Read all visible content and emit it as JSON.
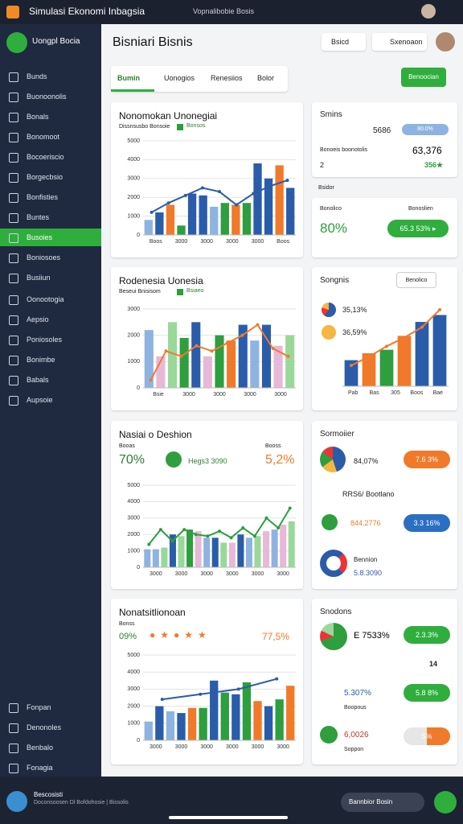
{
  "topbar": {
    "title": "Simulasi Ekonomi Inbagsia",
    "tab": "Vopnalibobie Bosis"
  },
  "sidebar": {
    "brand": "Uongpl Bocia",
    "items": [
      "Bunds",
      "Buonoonolis",
      "Bonals",
      "Bonomoot",
      "Bocoeriscio",
      "Borgecbsio",
      "Bonfisties",
      "Buntes",
      "Busoies",
      "Boniosoes",
      "Busiiun",
      "Oonootogia",
      "Aepsio",
      "Poniosoles",
      "Bonimbe",
      "Babals",
      "Aupsoie"
    ],
    "footer": [
      "Fonpan",
      "Denonoles",
      "Benbalo",
      "Fonagia"
    ]
  },
  "header": {
    "title": "Bisniari Bisnis",
    "select": "Bsicd",
    "search": "Sxenoaon",
    "button": "Benoocian",
    "tabs": [
      "Bumin",
      "Uonogios",
      "Renesiios",
      "Bolor"
    ]
  },
  "charts": [
    {
      "title": "Nonomokan Unonegiai",
      "subtitle": "Dissnsusbo Bonsoie",
      "legend": "Bonsos",
      "ylim": [
        0,
        5000
      ],
      "yticks": [
        0,
        1000,
        2000,
        3000,
        4000,
        5000
      ],
      "categories": [
        "Boos",
        "3000",
        "3000",
        "3000",
        "3000",
        "Boos"
      ],
      "bars": [
        800,
        1200,
        1600,
        500,
        2200,
        2100,
        1500,
        1700,
        1600,
        1700,
        3800,
        3000,
        3700,
        2500
      ],
      "bar_colors": [
        "#8fb3e0",
        "#2a5caa",
        "#f07a2a",
        "#2e9e3e",
        "#2a5caa",
        "#2a5caa",
        "#8fb3e0",
        "#2e9e3e",
        "#f07a2a",
        "#2e9e3e",
        "#2a5caa",
        "#2a5caa",
        "#f07a2a",
        "#2a5caa"
      ],
      "line": [
        1200,
        1700,
        2100,
        2500,
        2300,
        1600,
        2200,
        2600,
        2900
      ],
      "line_color": "#2a5caa"
    },
    {
      "title": "Rodenesia Uonesia",
      "subtitle": "Beseui Bnisisom",
      "legend": "Bsiaeo",
      "ylim": [
        0,
        3000
      ],
      "yticks": [
        0,
        1000,
        2000,
        3000
      ],
      "categories": [
        "Bsie",
        "3000",
        "3000",
        "3000",
        "3000"
      ],
      "bars": [
        2200,
        1200,
        2500,
        1900,
        2500,
        1200,
        2000,
        1800,
        2400,
        1800,
        2400,
        1600,
        2000
      ],
      "bar_colors": [
        "#8fb3e0",
        "#e7b8d8",
        "#9ad89a",
        "#2e9e3e",
        "#2a5caa",
        "#e7b8d8",
        "#2e9e3e",
        "#f07a2a",
        "#2a5caa",
        "#8fb3e0",
        "#2a5caa",
        "#e7b8d8",
        "#9ad89a"
      ],
      "line": [
        300,
        1400,
        1200,
        1600,
        1400,
        1700,
        2000,
        2400,
        1500,
        1200
      ],
      "line_color": "#f07a2a"
    },
    {
      "title": "Nasiai o Deshion",
      "subtitle": "Booas",
      "ylim": [
        0,
        5000
      ],
      "yticks": [
        0,
        1000,
        2000,
        3000,
        4000,
        5000
      ],
      "categories": [
        "3000",
        "3000",
        "3000",
        "3000",
        "3000",
        "3000"
      ],
      "bars": [
        1100,
        1100,
        1200,
        2000,
        1900,
        2300,
        2200,
        1800,
        1800,
        1500,
        1500,
        2000,
        1800,
        1900,
        2200,
        2300,
        2600,
        2800
      ],
      "bar_colors": [
        "#8fb3e0",
        "#8fb3e0",
        "#9ad89a",
        "#2a5caa",
        "#9ad89a",
        "#2e9e3e",
        "#e7b8d8",
        "#8fb3e0",
        "#2a5caa",
        "#9ad89a",
        "#e7b8d8",
        "#2a5caa",
        "#8fb3e0",
        "#9ad89a",
        "#e7b8d8",
        "#8fb3e0",
        "#e7b8d8",
        "#9ad89a"
      ],
      "line": [
        1400,
        2300,
        1600,
        2300,
        2000,
        1900,
        2200,
        1800,
        2400,
        1900,
        3000,
        2400,
        3600
      ],
      "line_color": "#2e9e3e"
    },
    {
      "title": "Nonatsitlionoan",
      "subtitle": "Bonss",
      "ylim": [
        0,
        5000
      ],
      "yticks": [
        0,
        1000,
        2000,
        3000,
        4000,
        5000
      ],
      "categories": [
        "3000",
        "3000",
        "3000",
        "3000",
        "3000",
        "3000"
      ],
      "bars": [
        1100,
        2000,
        1700,
        1600,
        1900,
        1900,
        3500,
        2800,
        2700,
        3400,
        2300,
        2000,
        2400,
        3200
      ],
      "bar_colors": [
        "#8fb3e0",
        "#2a5caa",
        "#8fb3e0",
        "#2a5caa",
        "#f07a2a",
        "#2e9e3e",
        "#2a5caa",
        "#2e9e3e",
        "#2a5caa",
        "#2e9e3e",
        "#f07a2a",
        "#2a5caa",
        "#2e9e3e",
        "#f07a2a"
      ],
      "line": [
        2400,
        2700,
        3000,
        3600
      ],
      "line_color": "#2a5caa"
    }
  ],
  "left_stats": {
    "c3": [
      "70%",
      "Hegs3 3090",
      "5,2%",
      "Booss"
    ],
    "c4": [
      "09%",
      "77,5%"
    ]
  },
  "right": {
    "c1": [
      "Smins",
      "5686",
      "80.0%",
      "Bonoeis boonotolis",
      "63,376",
      "2",
      "356★"
    ],
    "label": "Bsidor",
    "c2": [
      "Bonolico",
      "Bonoslien",
      "80%",
      "65.3 53% ▸"
    ],
    "c3": {
      "title": "Songnis",
      "select": "Benolico",
      "stats": [
        "35,13%",
        "36,59%"
      ],
      "categories": [
        "Pab",
        "Bas",
        "305",
        "Boos",
        "Bae"
      ],
      "ylim": [
        0,
        5000
      ],
      "bars": [
        1500,
        1900,
        2100,
        2900,
        3700,
        4100
      ],
      "bar_colors": [
        "#2a5caa",
        "#f07a2a",
        "#2e9e3e",
        "#f07a2a",
        "#2a5caa",
        "#2a5caa"
      ],
      "line": [
        1200,
        1700,
        2300,
        2800,
        3400,
        4400
      ],
      "line_color": "#f07a2a"
    },
    "c4": [
      "Sormoiier",
      "84,07%",
      "7.6 3%",
      "RRS6/ Bootlano",
      "844.2776",
      "3.3 16%",
      "Bennion",
      "5.8.3090"
    ],
    "c5": [
      "Snodons",
      "E 7533%",
      "2.3.3%",
      "14",
      "5.307%",
      "Boopous",
      "5.8 8%",
      "6,0026",
      "Soppon",
      "5%"
    ]
  },
  "bottombar": {
    "brand": "Bescosisti",
    "caption": "Doconsoosen Dl Bofdohosie | Bissolis",
    "button": "Bannbior Bosin"
  }
}
